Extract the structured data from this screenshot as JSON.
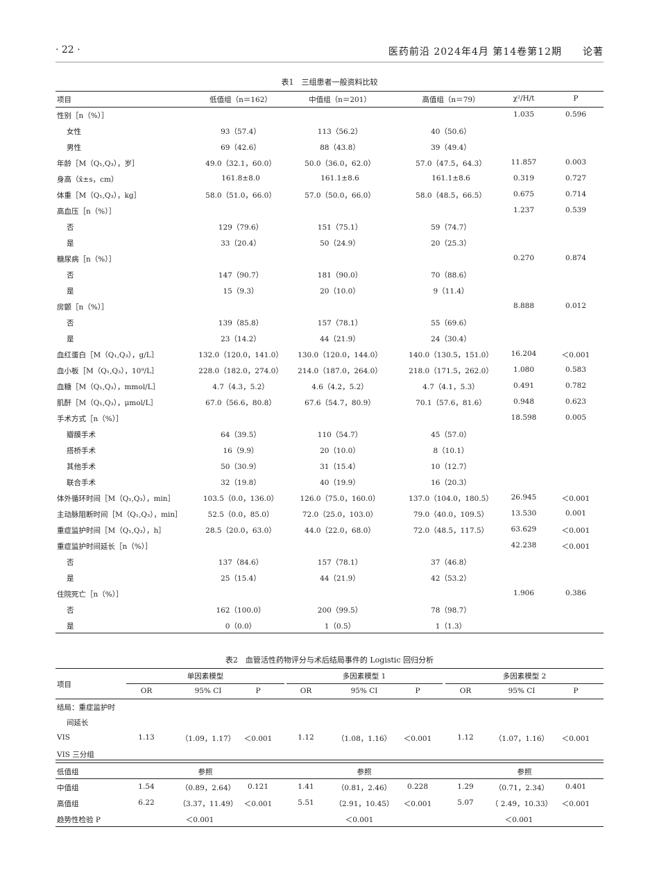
{
  "header": {
    "page": "· 22 ·",
    "journal": "医药前沿 2024年4月 第14卷第12期　　论著"
  },
  "table1": {
    "caption": "表1　三组患者一般资料比较",
    "columns": [
      "项目",
      "低值组（n＝162）",
      "中值组（n＝201）",
      "高值组（n＝79）",
      "χ²/H/t",
      "P"
    ],
    "rows": [
      [
        "性别［n（%）］",
        "",
        "",
        "",
        "1.035",
        "0.596",
        0
      ],
      [
        "女性",
        "93（57.4）",
        "113（56.2）",
        "40（50.6）",
        "",
        "",
        1
      ],
      [
        "男性",
        "69（42.6）",
        "88（43.8）",
        "39（49.4）",
        "",
        "",
        1
      ],
      [
        "年龄［M（Q₁,Q₃），岁］",
        "49.0（32.1，60.0）",
        "50.0（36.0，62.0）",
        "57.0（47.5，64.3）",
        "11.857",
        "0.003",
        0
      ],
      [
        "身高（x̄±s，cm）",
        "161.8±8.0",
        "161.1±8.6",
        "161.1±8.6",
        "0.319",
        "0.727",
        0
      ],
      [
        "体重［M（Q₁,Q₃），kg］",
        "58.0（51.0，66.0）",
        "57.0（50.0，66.0）",
        "58.0（48.5，66.5）",
        "0.675",
        "0.714",
        0
      ],
      [
        "高血压［n（%）］",
        "",
        "",
        "",
        "1.237",
        "0.539",
        0
      ],
      [
        "否",
        "129（79.6）",
        "151（75.1）",
        "59（74.7）",
        "",
        "",
        1
      ],
      [
        "是",
        "33（20.4）",
        "50（24.9）",
        "20（25.3）",
        "",
        "",
        1
      ],
      [
        "糖尿病［n（%）］",
        "",
        "",
        "",
        "0.270",
        "0.874",
        0
      ],
      [
        "否",
        "147（90.7）",
        "181（90.0）",
        "70（88.6）",
        "",
        "",
        1
      ],
      [
        "是",
        "15（9.3）",
        "20（10.0）",
        "9（11.4）",
        "",
        "",
        1
      ],
      [
        "房颤［n（%）］",
        "",
        "",
        "",
        "8.888",
        "0.012",
        0
      ],
      [
        "否",
        "139（85.8）",
        "157（78.1）",
        "55（69.6）",
        "",
        "",
        1
      ],
      [
        "是",
        "23（14.2）",
        "44（21.9）",
        "24（30.4）",
        "",
        "",
        1
      ],
      [
        "血红蛋白［M（Q₁,Q₃），g/L］",
        "132.0（120.0，141.0）",
        "130.0（120.0，144.0）",
        "140.0（130.5，151.0）",
        "16.204",
        "＜0.001",
        0
      ],
      [
        "血小板［M（Q₁,Q₃），10⁹/L］",
        "228.0（182.0，274.0）",
        "214.0（187.0，264.0）",
        "218.0（171.5，262.0）",
        "1.080",
        "0.583",
        0
      ],
      [
        "血糖［M（Q₁,Q₃），mmol/L］",
        "4.7（4.3，5.2）",
        "4.6（4.2，5.2）",
        "4.7（4.1，5.3）",
        "0.491",
        "0.782",
        0
      ],
      [
        "肌酐［M（Q₁,Q₃），μmol/L］",
        "67.0（56.6，80.8）",
        "67.6（54.7，80.9）",
        "70.1（57.6，81.6）",
        "0.948",
        "0.623",
        0
      ],
      [
        "手术方式［n（%）］",
        "",
        "",
        "",
        "18.598",
        "0.005",
        0
      ],
      [
        "瓣膜手术",
        "64（39.5）",
        "110（54.7）",
        "45（57.0）",
        "",
        "",
        1
      ],
      [
        "搭桥手术",
        "16（9.9）",
        "20（10.0）",
        "8（10.1）",
        "",
        "",
        1
      ],
      [
        "其他手术",
        "50（30.9）",
        "31（15.4）",
        "10（12.7）",
        "",
        "",
        1
      ],
      [
        "联合手术",
        "32（19.8）",
        "40（19.9）",
        "16（20.3）",
        "",
        "",
        1
      ],
      [
        "体外循环时间［M（Q₁,Q₃），min］",
        "103.5（0.0，136.0）",
        "126.0（75.0，160.0）",
        "137.0（104.0，180.5）",
        "26.945",
        "＜0.001",
        0
      ],
      [
        "主动脉阻断时间［M（Q₁,Q₃），min］",
        "52.5（0.0，85.0）",
        "72.0（25.0，103.0）",
        "79.0（40.0，109.5）",
        "13.530",
        "0.001",
        0
      ],
      [
        "重症监护时间［M（Q₁,Q₃），h］",
        "28.5（20.0，63.0）",
        "44.0（22.0，68.0）",
        "72.0（48.5，117.5）",
        "63.629",
        "＜0.001",
        0
      ],
      [
        "重症监护时间延长［n（%）］",
        "",
        "",
        "",
        "42.238",
        "＜0.001",
        0
      ],
      [
        "否",
        "137（84.6）",
        "157（78.1）",
        "37（46.8）",
        "",
        "",
        1
      ],
      [
        "是",
        "25（15.4）",
        "44（21.9）",
        "42（53.2）",
        "",
        "",
        1
      ],
      [
        "住院死亡［n（%）］",
        "",
        "",
        "",
        "1.906",
        "0.386",
        0
      ],
      [
        "否",
        "162（100.0）",
        "200（99.5）",
        "78（98.7）",
        "",
        "",
        1
      ],
      [
        "是",
        "0（0.0）",
        "1（0.5）",
        "1（1.3）",
        "",
        "",
        1
      ]
    ]
  },
  "table2": {
    "caption": "表2　血管活性药物评分与术后结局事件的 Logistic 回归分析",
    "item_label": "项目",
    "groups": [
      "单因素模型",
      "多因素模型 1",
      "多因素模型 2"
    ],
    "subcols": [
      "OR",
      "95% CI",
      "P",
      "OR",
      "95% CI",
      "P",
      "OR",
      "95% CI",
      "P"
    ],
    "rows": [
      {
        "label": "结局：重症监护时",
        "cells": []
      },
      {
        "label": "间延长",
        "indent": true,
        "cells": []
      },
      {
        "label": "VIS",
        "cells": [
          "1.13",
          "（1.09，1.17）",
          "＜0.001",
          "1.12",
          "（1.08，1.16）",
          "＜0.001",
          "1.12",
          "（1.07，1.16）",
          "＜0.001"
        ]
      },
      {
        "label": "VIS 三分组",
        "cells": []
      },
      {
        "label": "低值组",
        "ref": "参照"
      },
      {
        "label": "中值组",
        "cells": [
          "1.54",
          "（0.89，2.64）",
          "0.121",
          "1.41",
          "（0.81，2.46）",
          "0.228",
          "1.29",
          "（0.71，2.34）",
          "0.401"
        ]
      },
      {
        "label": "高值组",
        "cells": [
          "6.22",
          "（3.37，11.49）",
          "＜0.001",
          "5.51",
          "（2.91，10.45）",
          "＜0.001",
          "5.07",
          "（ 2.49，10.33）",
          "＜0.001"
        ]
      },
      {
        "label": "趋势性检验 P",
        "trend": "＜0.001"
      }
    ]
  }
}
